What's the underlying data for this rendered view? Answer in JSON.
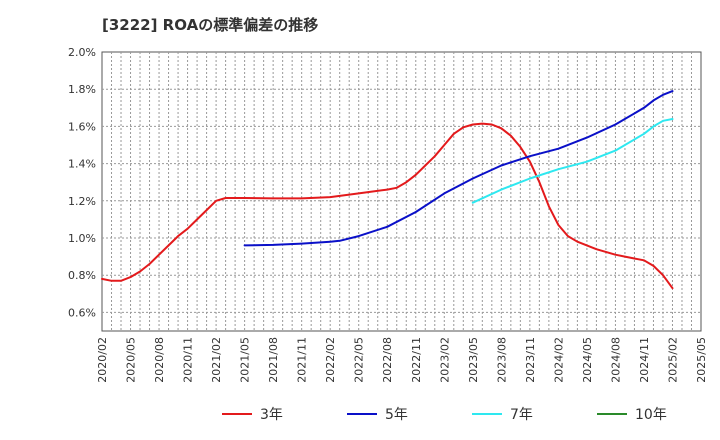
{
  "chart_data": {
    "type": "line",
    "title": "[3222]  ROAの標準偏差の推移",
    "xlabel": "",
    "ylabel": "",
    "x": [
      "2020/02",
      "2020/05",
      "2020/08",
      "2020/11",
      "2021/02",
      "2021/05",
      "2021/08",
      "2021/11",
      "2022/02",
      "2022/05",
      "2022/08",
      "2022/11",
      "2023/02",
      "2023/05",
      "2023/08",
      "2023/11",
      "2024/02",
      "2024/05",
      "2024/08",
      "2024/11",
      "2025/02",
      "2025/05"
    ],
    "ylim": [
      0.5,
      2.0
    ],
    "yticks": [
      "0.6%",
      "0.8%",
      "1.0%",
      "1.2%",
      "1.4%",
      "1.6%",
      "1.8%",
      "2.0%"
    ],
    "grid": true,
    "legend_position": "bottom",
    "series": [
      {
        "name": "3年",
        "color": "#e31a1c",
        "points": [
          [
            "2020/02",
            0.78
          ],
          [
            "2020/03",
            0.77
          ],
          [
            "2020/04",
            0.77
          ],
          [
            "2020/05",
            0.79
          ],
          [
            "2020/06",
            0.82
          ],
          [
            "2020/07",
            0.86
          ],
          [
            "2020/08",
            0.91
          ],
          [
            "2020/09",
            0.96
          ],
          [
            "2020/10",
            1.01
          ],
          [
            "2020/11",
            1.05
          ],
          [
            "2020/12",
            1.1
          ],
          [
            "2021/01",
            1.15
          ],
          [
            "2021/02",
            1.2
          ],
          [
            "2021/03",
            1.215
          ],
          [
            "2021/05",
            1.215
          ],
          [
            "2021/08",
            1.213
          ],
          [
            "2021/11",
            1.213
          ],
          [
            "2022/02",
            1.22
          ],
          [
            "2022/05",
            1.24
          ],
          [
            "2022/08",
            1.26
          ],
          [
            "2022/09",
            1.27
          ],
          [
            "2022/10",
            1.3
          ],
          [
            "2022/11",
            1.34
          ],
          [
            "2022/12",
            1.39
          ],
          [
            "2023/01",
            1.44
          ],
          [
            "2023/02",
            1.5
          ],
          [
            "2023/03",
            1.56
          ],
          [
            "2023/04",
            1.595
          ],
          [
            "2023/05",
            1.61
          ],
          [
            "2023/06",
            1.615
          ],
          [
            "2023/07",
            1.61
          ],
          [
            "2023/08",
            1.59
          ],
          [
            "2023/09",
            1.55
          ],
          [
            "2023/10",
            1.49
          ],
          [
            "2023/11",
            1.41
          ],
          [
            "2023/12",
            1.3
          ],
          [
            "2024/01",
            1.17
          ],
          [
            "2024/02",
            1.07
          ],
          [
            "2024/03",
            1.01
          ],
          [
            "2024/04",
            0.98
          ],
          [
            "2024/05",
            0.96
          ],
          [
            "2024/06",
            0.94
          ],
          [
            "2024/07",
            0.925
          ],
          [
            "2024/08",
            0.91
          ],
          [
            "2024/09",
            0.9
          ],
          [
            "2024/10",
            0.89
          ],
          [
            "2024/11",
            0.88
          ],
          [
            "2024/12",
            0.85
          ],
          [
            "2025/01",
            0.8
          ],
          [
            "2025/02",
            0.73
          ]
        ]
      },
      {
        "name": "5年",
        "color": "#0a10c8",
        "points": [
          [
            "2021/05",
            0.96
          ],
          [
            "2021/08",
            0.963
          ],
          [
            "2021/11",
            0.97
          ],
          [
            "2022/02",
            0.98
          ],
          [
            "2022/03",
            0.985
          ],
          [
            "2022/05",
            1.01
          ],
          [
            "2022/08",
            1.06
          ],
          [
            "2022/11",
            1.14
          ],
          [
            "2023/02",
            1.24
          ],
          [
            "2023/05",
            1.32
          ],
          [
            "2023/08",
            1.39
          ],
          [
            "2023/11",
            1.44
          ],
          [
            "2024/02",
            1.48
          ],
          [
            "2024/05",
            1.54
          ],
          [
            "2024/08",
            1.61
          ],
          [
            "2024/11",
            1.7
          ],
          [
            "2024/12",
            1.74
          ],
          [
            "2025/01",
            1.77
          ],
          [
            "2025/02",
            1.79
          ]
        ]
      },
      {
        "name": "7年",
        "color": "#2ee8f0",
        "points": [
          [
            "2023/05",
            1.19
          ],
          [
            "2023/08",
            1.26
          ],
          [
            "2023/11",
            1.32
          ],
          [
            "2024/02",
            1.37
          ],
          [
            "2024/05",
            1.41
          ],
          [
            "2024/08",
            1.47
          ],
          [
            "2024/11",
            1.56
          ],
          [
            "2024/12",
            1.6
          ],
          [
            "2025/01",
            1.63
          ],
          [
            "2025/02",
            1.64
          ]
        ]
      },
      {
        "name": "10年",
        "color": "#2a8a2a",
        "points": []
      }
    ]
  }
}
